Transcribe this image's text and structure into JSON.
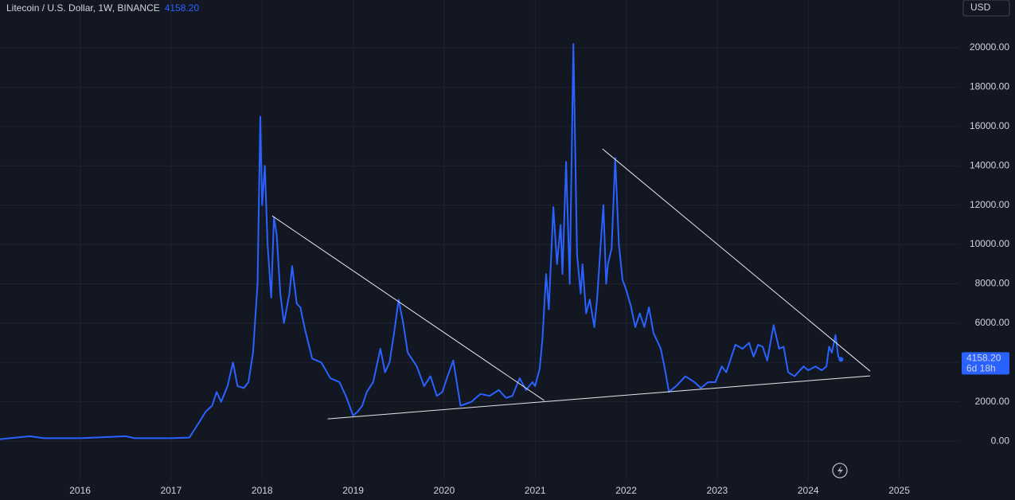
{
  "chart_data": {
    "type": "line",
    "title": "Litecoin / U.S. Dollar, 1W, BINANCE",
    "currency": "USD",
    "last_price": {
      "value": 4158.2,
      "label": "4158.20"
    },
    "countdown": "6d 18h",
    "xlim": [
      2015.12,
      2025.66
    ],
    "xticks": [
      2016,
      2017,
      2018,
      2019,
      2020,
      2021,
      2022,
      2023,
      2024,
      2025
    ],
    "ylim": [
      -1980,
      22430
    ],
    "yticks": [
      {
        "value": 0,
        "label": "0.00"
      },
      {
        "value": 2000,
        "label": "2000.00"
      },
      {
        "value": 4000,
        "label": "4000.00"
      },
      {
        "value": 6000,
        "label": "6000.00"
      },
      {
        "value": 8000,
        "label": "8000.00"
      },
      {
        "value": 10000,
        "label": "10000.00"
      },
      {
        "value": 12000,
        "label": "12000.00"
      },
      {
        "value": 14000,
        "label": "14000.00"
      },
      {
        "value": 16000,
        "label": "16000.00"
      },
      {
        "value": 18000,
        "label": "18000.00"
      },
      {
        "value": 20000,
        "label": "20000.00"
      }
    ],
    "grid": true,
    "series": [
      {
        "color": "#2962ff",
        "x": [
          2015.12,
          2015.45,
          2015.6,
          2016.0,
          2016.5,
          2016.6,
          2017.0,
          2017.2,
          2017.3,
          2017.38,
          2017.45,
          2017.5,
          2017.55,
          2017.62,
          2017.68,
          2017.73,
          2017.8,
          2017.85,
          2017.9,
          2017.95,
          2017.98,
          2018.0,
          2018.03,
          2018.06,
          2018.1,
          2018.13,
          2018.16,
          2018.2,
          2018.24,
          2018.3,
          2018.33,
          2018.38,
          2018.42,
          2018.47,
          2018.55,
          2018.65,
          2018.75,
          2018.85,
          2018.92,
          2019.0,
          2019.05,
          2019.1,
          2019.15,
          2019.22,
          2019.3,
          2019.35,
          2019.4,
          2019.45,
          2019.5,
          2019.55,
          2019.6,
          2019.7,
          2019.78,
          2019.85,
          2019.92,
          2019.98,
          2020.03,
          2020.1,
          2020.18,
          2020.3,
          2020.4,
          2020.5,
          2020.6,
          2020.68,
          2020.75,
          2020.83,
          2020.9,
          2020.97,
          2021.0,
          2021.05,
          2021.08,
          2021.12,
          2021.15,
          2021.2,
          2021.24,
          2021.28,
          2021.3,
          2021.34,
          2021.38,
          2021.42,
          2021.46,
          2021.5,
          2021.52,
          2021.56,
          2021.6,
          2021.65,
          2021.68,
          2021.72,
          2021.75,
          2021.78,
          2021.8,
          2021.84,
          2021.88,
          2021.92,
          2021.96,
          2022.0,
          2022.05,
          2022.1,
          2022.15,
          2022.2,
          2022.25,
          2022.3,
          2022.38,
          2022.42,
          2022.47,
          2022.55,
          2022.65,
          2022.75,
          2022.82,
          2022.9,
          2022.98,
          2023.05,
          2023.1,
          2023.15,
          2023.2,
          2023.28,
          2023.35,
          2023.4,
          2023.45,
          2023.5,
          2023.55,
          2023.62,
          2023.68,
          2023.73,
          2023.78,
          2023.85,
          2023.95,
          2024.0,
          2024.08,
          2024.15,
          2024.2,
          2024.23,
          2024.26,
          2024.3,
          2024.33,
          2024.36
        ],
        "values": [
          100,
          250,
          150,
          150,
          250,
          150,
          150,
          180,
          900,
          1500,
          1800,
          2500,
          2000,
          2800,
          4000,
          2800,
          2700,
          3000,
          4500,
          8000,
          16500,
          12000,
          14000,
          10000,
          7300,
          11400,
          10500,
          7500,
          6000,
          7500,
          8900,
          7000,
          6800,
          5700,
          4200,
          4000,
          3200,
          3000,
          2300,
          1300,
          1500,
          1800,
          2500,
          3000,
          4700,
          3500,
          4000,
          5500,
          7200,
          6000,
          4500,
          3800,
          2800,
          3300,
          2300,
          2500,
          3200,
          4100,
          1800,
          2000,
          2400,
          2300,
          2600,
          2200,
          2300,
          3200,
          2600,
          3000,
          2800,
          3700,
          5200,
          8500,
          6700,
          11900,
          9000,
          11000,
          8500,
          14200,
          8000,
          20200,
          9500,
          7500,
          9000,
          6500,
          7200,
          5800,
          7200,
          10000,
          12000,
          8000,
          9000,
          9800,
          14400,
          10000,
          8200,
          7700,
          6900,
          5800,
          6500,
          5800,
          6800,
          5500,
          4700,
          3800,
          2500,
          2800,
          3300,
          3000,
          2700,
          3000,
          3000,
          3800,
          3500,
          4200,
          4900,
          4700,
          5000,
          4300,
          4900,
          4800,
          4100,
          5900,
          4700,
          4800,
          3500,
          3300,
          3800,
          3600,
          3800,
          3600,
          3800,
          4800,
          4500,
          5400,
          4300,
          4158.2
        ]
      }
    ],
    "trendlines": [
      {
        "x": [
          2018.11,
          2021.1
        ],
        "y": [
          11457,
          2065
        ]
      },
      {
        "x": [
          2018.72,
          2024.68
        ],
        "y": [
          1134,
          3320
        ]
      },
      {
        "x": [
          2021.74,
          2024.68
        ],
        "y": [
          14858,
          3563
        ]
      }
    ]
  }
}
